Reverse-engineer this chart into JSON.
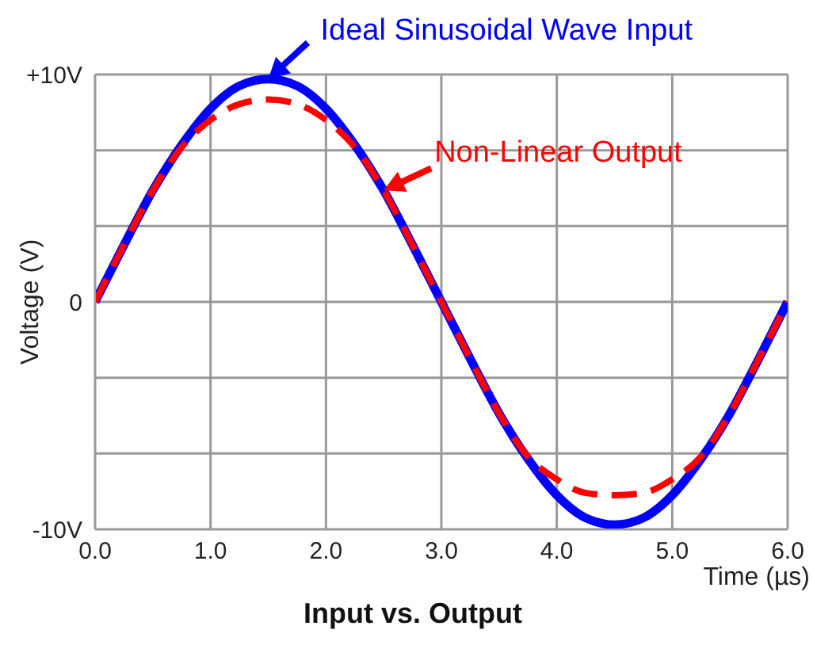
{
  "chart_data": {
    "type": "line",
    "title": "Input vs. Output",
    "xlabel": "Time (µs)",
    "ylabel": "Voltage (V)",
    "x": [
      0,
      0.25,
      0.5,
      0.75,
      1,
      1.25,
      1.5,
      1.75,
      2,
      2.25,
      2.5,
      2.75,
      3,
      3.25,
      3.5,
      3.75,
      4,
      4.25,
      4.5,
      4.75,
      5,
      5.25,
      5.5,
      5.75,
      6
    ],
    "series": [
      {
        "color": "#0000ff",
        "line_style": "solid",
        "values": [
          0,
          2.5,
          4.9,
          6.9,
          8.5,
          9.5,
          9.8,
          9.5,
          8.5,
          6.9,
          4.9,
          2.5,
          0,
          -2.5,
          -4.9,
          -6.9,
          -8.5,
          -9.5,
          -9.8,
          -9.5,
          -8.5,
          -6.9,
          -4.9,
          -2.5,
          0
        ]
      },
      {
        "color": "#ff0000",
        "line_style": "dashed",
        "values": [
          0,
          2.5,
          4.9,
          6.8,
          8.0,
          8.7,
          8.9,
          8.7,
          8.0,
          6.8,
          4.9,
          2.5,
          0,
          -2.5,
          -4.9,
          -6.8,
          -7.8,
          -8.4,
          -8.5,
          -8.4,
          -7.8,
          -6.8,
          -4.9,
          -2.5,
          0
        ]
      }
    ],
    "xlim": [
      0,
      6
    ],
    "xticks": [
      {
        "value": 0,
        "label": "0.0"
      },
      {
        "value": 1,
        "label": "1.0"
      },
      {
        "value": 2,
        "label": "2.0"
      },
      {
        "value": 3,
        "label": "3.0"
      },
      {
        "value": 4,
        "label": "4.0"
      },
      {
        "value": 5,
        "label": "5.0"
      },
      {
        "value": 6,
        "label": "6.0"
      }
    ],
    "ylim": [
      -10,
      10
    ],
    "yticks": [
      {
        "value": -10,
        "label": "-10V"
      },
      {
        "value": -6.667,
        "label": null
      },
      {
        "value": -3.333,
        "label": null
      },
      0,
      {
        "value": 3.333,
        "label": null
      },
      {
        "value": 6.667,
        "label": null
      },
      {
        "value": 10,
        "label": "+10V"
      }
    ],
    "grid": true,
    "marker": "none",
    "annotations": [
      {
        "text": "Ideal Sinusoidal Wave Input",
        "x": 1.5,
        "y": 9.8
      },
      {
        "text": "Non-Linear Output",
        "x": 2.5,
        "y": 4.9
      }
    ]
  }
}
